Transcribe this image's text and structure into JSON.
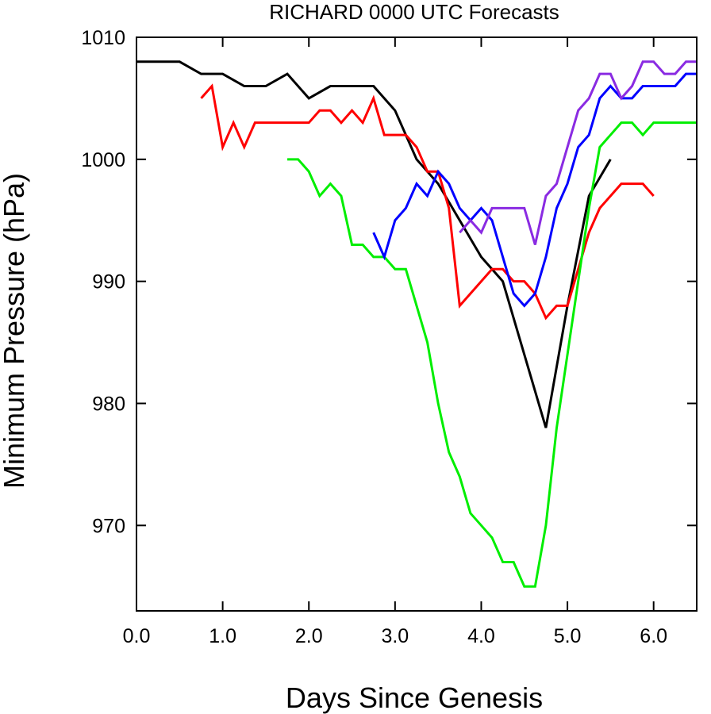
{
  "chart_data": {
    "type": "line",
    "title": "RICHARD 0000 UTC Forecasts",
    "xlabel": "Days Since Genesis",
    "ylabel": "Minimum Pressure (hPa)",
    "xlim": [
      0.0,
      6.5
    ],
    "ylim": [
      963,
      1010
    ],
    "xticks": [
      "0.0",
      "1.0",
      "2.0",
      "3.0",
      "4.0",
      "5.0",
      "6.0"
    ],
    "yticks": [
      "970",
      "980",
      "990",
      "1000",
      "1010"
    ],
    "grid": false,
    "legend": "none",
    "series": [
      {
        "color": "#000000",
        "points": [
          [
            0.0,
            1008
          ],
          [
            0.5,
            1008
          ],
          [
            0.75,
            1007
          ],
          [
            1.0,
            1007
          ],
          [
            1.25,
            1006
          ],
          [
            1.5,
            1006
          ],
          [
            1.75,
            1007
          ],
          [
            2.0,
            1005
          ],
          [
            2.25,
            1006
          ],
          [
            2.5,
            1006
          ],
          [
            2.75,
            1006
          ],
          [
            3.0,
            1004
          ],
          [
            3.25,
            1000
          ],
          [
            3.5,
            998
          ],
          [
            3.75,
            995
          ],
          [
            4.0,
            992
          ],
          [
            4.25,
            990
          ],
          [
            4.5,
            984
          ],
          [
            4.75,
            978
          ],
          [
            5.0,
            988
          ],
          [
            5.25,
            997
          ],
          [
            5.5,
            1000
          ]
        ]
      },
      {
        "color": "#ff0000",
        "points": [
          [
            0.75,
            1005
          ],
          [
            0.875,
            1006
          ],
          [
            1.0,
            1001
          ],
          [
            1.125,
            1003
          ],
          [
            1.25,
            1001
          ],
          [
            1.375,
            1003
          ],
          [
            1.5,
            1003
          ],
          [
            1.625,
            1003
          ],
          [
            1.75,
            1003
          ],
          [
            1.875,
            1003
          ],
          [
            2.0,
            1003
          ],
          [
            2.125,
            1004
          ],
          [
            2.25,
            1004
          ],
          [
            2.375,
            1003
          ],
          [
            2.5,
            1004
          ],
          [
            2.625,
            1003
          ],
          [
            2.75,
            1005
          ],
          [
            2.875,
            1002
          ],
          [
            3.0,
            1002
          ],
          [
            3.125,
            1002
          ],
          [
            3.25,
            1001
          ],
          [
            3.375,
            999
          ],
          [
            3.5,
            999
          ],
          [
            3.625,
            996
          ],
          [
            3.75,
            988
          ],
          [
            3.875,
            989
          ],
          [
            4.0,
            990
          ],
          [
            4.125,
            991
          ],
          [
            4.25,
            991
          ],
          [
            4.375,
            990
          ],
          [
            4.5,
            990
          ],
          [
            4.625,
            989
          ],
          [
            4.75,
            987
          ],
          [
            4.875,
            988
          ],
          [
            5.0,
            988
          ],
          [
            5.125,
            991
          ],
          [
            5.25,
            994
          ],
          [
            5.375,
            996
          ],
          [
            5.5,
            997
          ],
          [
            5.625,
            998
          ],
          [
            5.75,
            998
          ],
          [
            5.875,
            998
          ],
          [
            6.0,
            997
          ]
        ]
      },
      {
        "color": "#00ee00",
        "points": [
          [
            1.75,
            1000
          ],
          [
            1.875,
            1000
          ],
          [
            2.0,
            999
          ],
          [
            2.125,
            997
          ],
          [
            2.25,
            998
          ],
          [
            2.375,
            997
          ],
          [
            2.5,
            993
          ],
          [
            2.625,
            993
          ],
          [
            2.75,
            992
          ],
          [
            2.875,
            992
          ],
          [
            3.0,
            991
          ],
          [
            3.125,
            991
          ],
          [
            3.25,
            988
          ],
          [
            3.375,
            985
          ],
          [
            3.5,
            980
          ],
          [
            3.625,
            976
          ],
          [
            3.75,
            974
          ],
          [
            3.875,
            971
          ],
          [
            4.0,
            970
          ],
          [
            4.125,
            969
          ],
          [
            4.25,
            967
          ],
          [
            4.375,
            967
          ],
          [
            4.5,
            965
          ],
          [
            4.625,
            965
          ],
          [
            4.75,
            970
          ],
          [
            4.875,
            978
          ],
          [
            5.0,
            984
          ],
          [
            5.125,
            990
          ],
          [
            5.25,
            996
          ],
          [
            5.375,
            1001
          ],
          [
            5.5,
            1002
          ],
          [
            5.625,
            1003
          ],
          [
            5.75,
            1003
          ],
          [
            5.875,
            1002
          ],
          [
            6.0,
            1003
          ],
          [
            6.25,
            1003
          ],
          [
            6.5,
            1003
          ]
        ]
      },
      {
        "color": "#0000ff",
        "points": [
          [
            2.75,
            994
          ],
          [
            2.875,
            992
          ],
          [
            3.0,
            995
          ],
          [
            3.125,
            996
          ],
          [
            3.25,
            998
          ],
          [
            3.375,
            997
          ],
          [
            3.5,
            999
          ],
          [
            3.625,
            998
          ],
          [
            3.75,
            996
          ],
          [
            3.875,
            995
          ],
          [
            4.0,
            996
          ],
          [
            4.125,
            995
          ],
          [
            4.25,
            992
          ],
          [
            4.375,
            989
          ],
          [
            4.5,
            988
          ],
          [
            4.625,
            989
          ],
          [
            4.75,
            992
          ],
          [
            4.875,
            996
          ],
          [
            5.0,
            998
          ],
          [
            5.125,
            1001
          ],
          [
            5.25,
            1002
          ],
          [
            5.375,
            1005
          ],
          [
            5.5,
            1006
          ],
          [
            5.625,
            1005
          ],
          [
            5.75,
            1005
          ],
          [
            5.875,
            1006
          ],
          [
            6.0,
            1006
          ],
          [
            6.125,
            1006
          ],
          [
            6.25,
            1006
          ],
          [
            6.375,
            1007
          ],
          [
            6.5,
            1007
          ]
        ]
      },
      {
        "color": "#8a2be2",
        "points": [
          [
            3.75,
            994
          ],
          [
            3.875,
            995
          ],
          [
            4.0,
            994
          ],
          [
            4.125,
            996
          ],
          [
            4.25,
            996
          ],
          [
            4.375,
            996
          ],
          [
            4.5,
            996
          ],
          [
            4.625,
            993
          ],
          [
            4.75,
            997
          ],
          [
            4.875,
            998
          ],
          [
            5.0,
            1001
          ],
          [
            5.125,
            1004
          ],
          [
            5.25,
            1005
          ],
          [
            5.375,
            1007
          ],
          [
            5.5,
            1007
          ],
          [
            5.625,
            1005
          ],
          [
            5.75,
            1006
          ],
          [
            5.875,
            1008
          ],
          [
            6.0,
            1008
          ],
          [
            6.125,
            1007
          ],
          [
            6.25,
            1007
          ],
          [
            6.375,
            1008
          ],
          [
            6.5,
            1008
          ]
        ]
      }
    ]
  }
}
